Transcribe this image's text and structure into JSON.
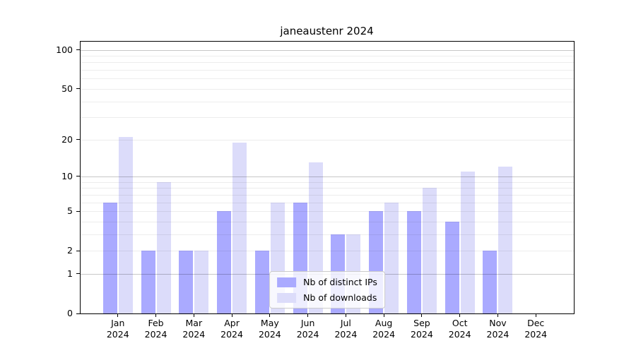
{
  "chart_data": {
    "type": "bar",
    "title": "janeaustenr 2024",
    "categories": [
      "Jan",
      "Feb",
      "Mar",
      "Apr",
      "May",
      "Jun",
      "Jul",
      "Aug",
      "Sep",
      "Oct",
      "Nov",
      "Dec"
    ],
    "tick_year": "2024",
    "series": [
      {
        "name": "Nb of distinct IPs",
        "color": "#aaaaff",
        "values": [
          6,
          2,
          2,
          5,
          2,
          6,
          3,
          5,
          5,
          4,
          2,
          0
        ]
      },
      {
        "name": "Nb of downloads",
        "color": "#dcdcfa",
        "values": [
          21,
          9,
          2,
          19,
          6,
          13,
          3,
          6,
          8,
          11,
          12,
          0
        ]
      }
    ],
    "yscale": "log1p",
    "ylim": [
      0,
      117
    ],
    "yticks": [
      0,
      1,
      2,
      5,
      10,
      20,
      50,
      100
    ],
    "grid_major": [
      1,
      10,
      100
    ],
    "grid_minor": [
      2,
      3,
      4,
      5,
      6,
      7,
      8,
      9,
      20,
      30,
      40,
      50,
      60,
      70,
      80,
      90
    ],
    "grid": true,
    "legend_position": "lower center",
    "xlabel": "",
    "ylabel": ""
  },
  "colors": {
    "bar_ips": "#aaaaff",
    "bar_downloads": "#dcdcfa",
    "spine": "#000000",
    "background": "#ffffff",
    "text": "#000000"
  }
}
